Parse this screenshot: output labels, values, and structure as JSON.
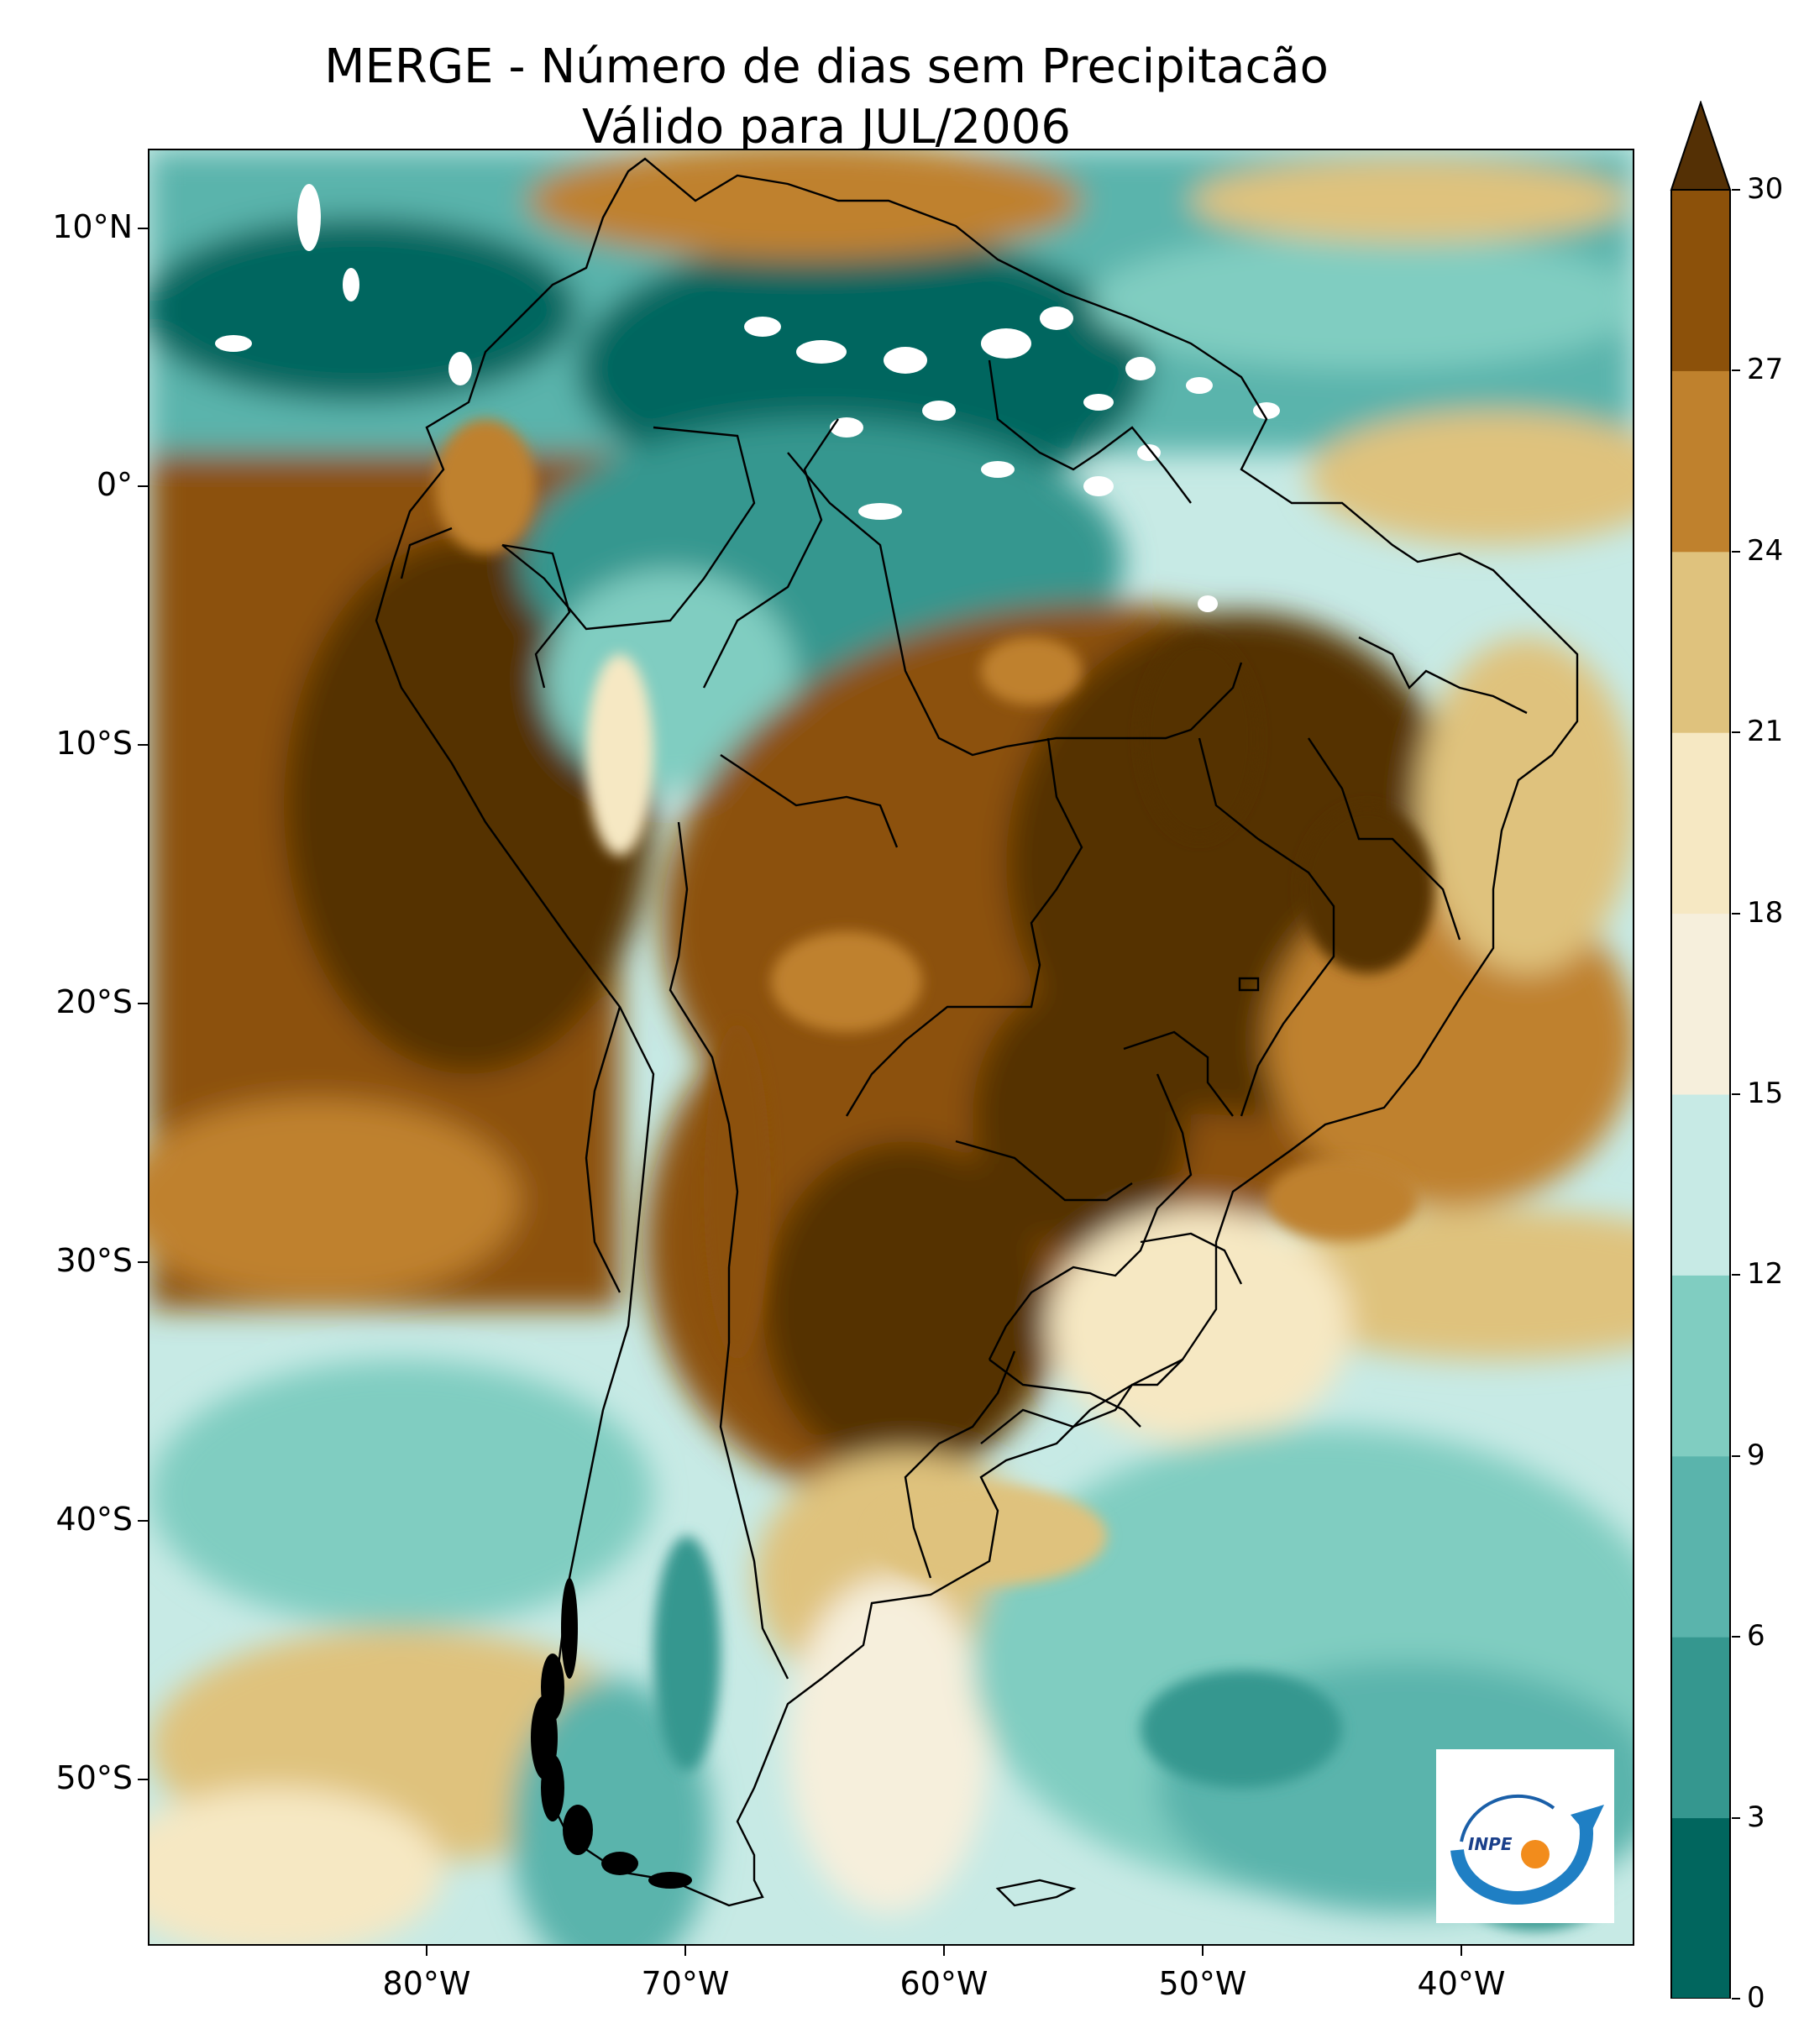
{
  "title": {
    "line1": "MERGE - Número de dias sem Precipitacão",
    "line2": "Válido para JUL/2006"
  },
  "axes": {
    "y_labels": [
      "10°N",
      "0°",
      "10°S",
      "20°S",
      "30°S",
      "40°S",
      "50°S"
    ],
    "x_labels": [
      "80°W",
      "70°W",
      "60°W",
      "50°W",
      "40°W"
    ]
  },
  "colorbar": {
    "ticks": [
      "0",
      "3",
      "6",
      "9",
      "12",
      "15",
      "18",
      "21",
      "24",
      "27",
      "30"
    ],
    "colors": [
      "#01665e",
      "#35978f",
      "#5ab4ac",
      "#80cdc1",
      "#c7eae5",
      "#f6efdc",
      "#f6e8c3",
      "#dfc27d",
      "#bf812d",
      "#8c510a",
      "#543005"
    ],
    "extend": "max"
  },
  "logo": {
    "text": "INPE"
  }
}
